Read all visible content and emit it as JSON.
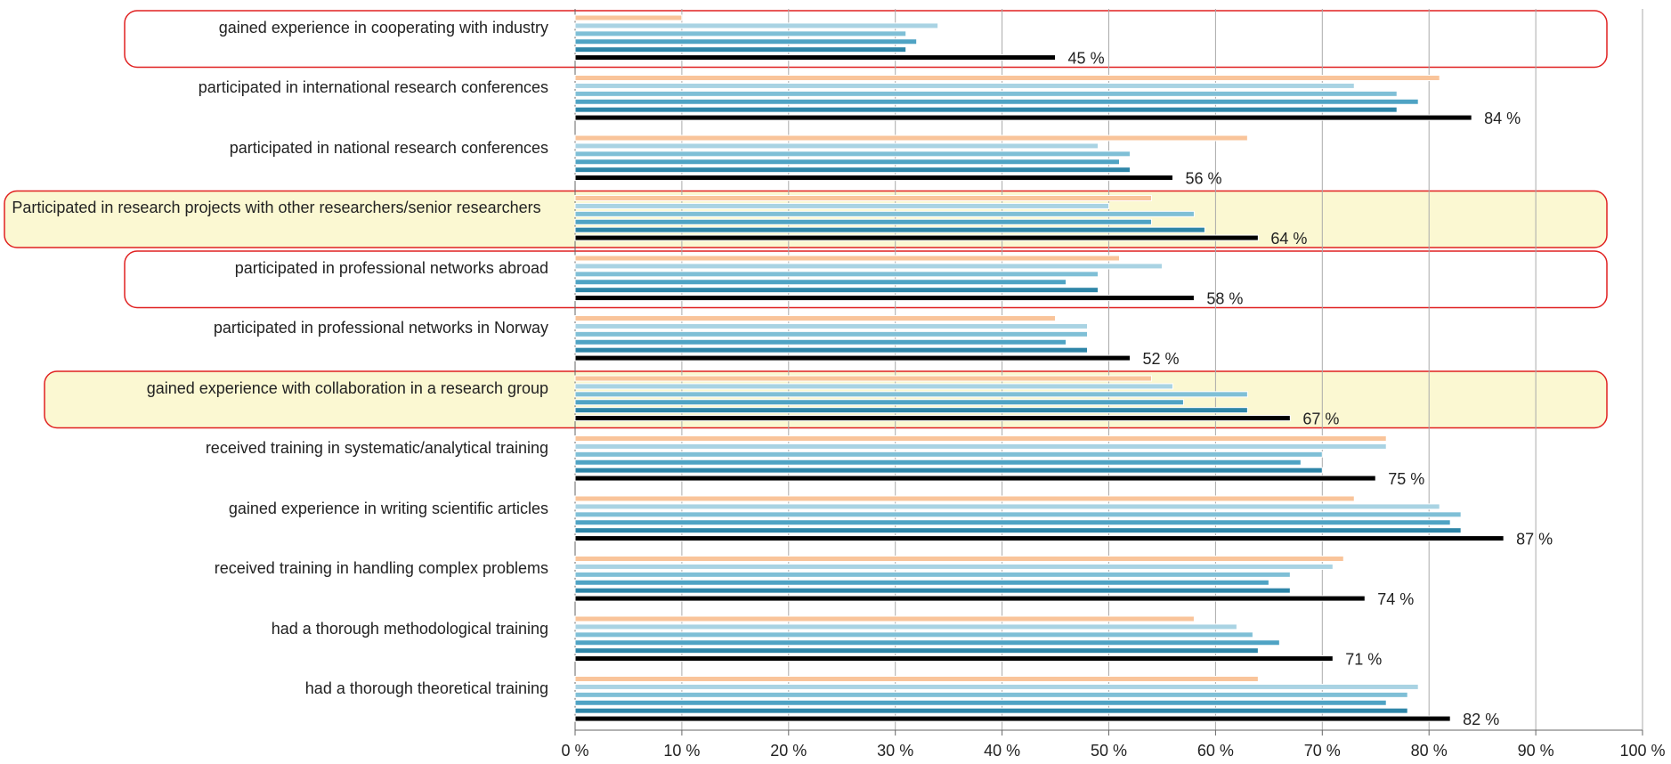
{
  "chart_data": {
    "type": "bar",
    "orientation": "horizontal",
    "categories": [
      "gained experience in cooperating with industry",
      "participated in international research conferences",
      "participated in national research conferences",
      "Participated in research projects with other researchers/senior researchers",
      "participated in professional networks abroad",
      "participated in professional networks in Norway",
      "gained experience with collaboration in a research group",
      "received training in systematic/analytical training",
      "gained experience in writing scientific articles",
      "received training in handling complex problems",
      "had a thorough methodological training",
      "had a thorough theoretical training"
    ],
    "series": [
      {
        "color": "#f9c49a",
        "values": [
          10,
          81,
          63,
          54,
          51,
          45,
          54,
          76,
          73,
          72,
          58,
          64
        ]
      },
      {
        "color": "#a9d3e3",
        "values": [
          34,
          73,
          49,
          50,
          55,
          48,
          56,
          76,
          81,
          71,
          62,
          79
        ]
      },
      {
        "color": "#7fbfd6",
        "values": [
          31,
          77,
          52,
          58,
          49,
          48,
          63,
          70,
          83,
          67,
          63.5,
          78
        ]
      },
      {
        "color": "#4fa3c4",
        "values": [
          32,
          79,
          51,
          54,
          46,
          46,
          57,
          68,
          82,
          65,
          66,
          76
        ]
      },
      {
        "color": "#2f86a8",
        "values": [
          31,
          77,
          52,
          59,
          49,
          48,
          63,
          70,
          83,
          67,
          64,
          78
        ]
      },
      {
        "color": "#000000",
        "values": [
          45,
          84,
          56,
          64,
          58,
          52,
          67,
          75,
          87,
          74,
          71,
          82
        ],
        "value_labels": [
          "45 %",
          "84 %",
          "56 %",
          "64 %",
          "58 %",
          "52 %",
          "67 %",
          "75 %",
          "87 %",
          "74 %",
          "71 %",
          "82 %"
        ]
      }
    ],
    "xlim": [
      0,
      100
    ],
    "xticks": [
      {
        "value": 0,
        "label": "0 %"
      },
      {
        "value": 10,
        "label": "10 %"
      },
      {
        "value": 20,
        "label": "20 %"
      },
      {
        "value": 30,
        "label": "30 %"
      },
      {
        "value": 40,
        "label": "40 %"
      },
      {
        "value": 50,
        "label": "50 %"
      },
      {
        "value": 60,
        "label": "60 %"
      },
      {
        "value": 70,
        "label": "70 %"
      },
      {
        "value": 80,
        "label": "80 %"
      },
      {
        "value": 90,
        "label": "90 %"
      },
      {
        "value": 100,
        "label": "100 %"
      }
    ],
    "grid": true
  }
}
